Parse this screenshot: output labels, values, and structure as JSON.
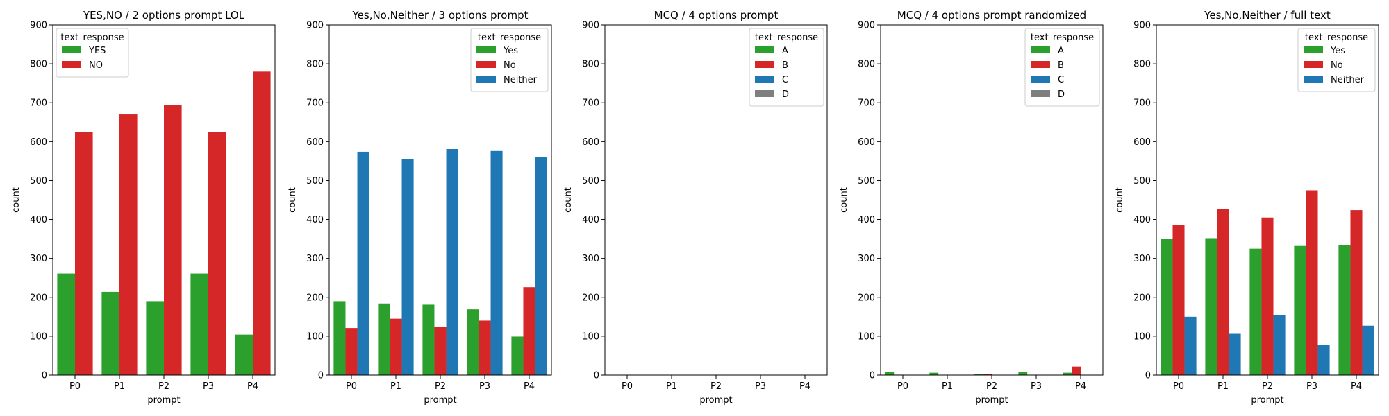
{
  "colors": {
    "green": "#2ca02c",
    "red": "#d62728",
    "blue": "#1f77b4",
    "gray": "#7f7f7f"
  },
  "chart_data": [
    {
      "type": "bar",
      "title": "YES,NO / 2 options prompt LOL",
      "xlabel": "prompt",
      "ylabel": "count",
      "ylim": [
        0,
        900
      ],
      "yticks": [
        0,
        100,
        200,
        300,
        400,
        500,
        600,
        700,
        800,
        900
      ],
      "categories": [
        "P0",
        "P1",
        "P2",
        "P3",
        "P4"
      ],
      "legend": {
        "title": "text_response",
        "placement": "top-left"
      },
      "series": [
        {
          "name": "YES",
          "color": "#2ca02c",
          "values": [
            261,
            214,
            190,
            261,
            104
          ]
        },
        {
          "name": "NO",
          "color": "#d62728",
          "values": [
            625,
            670,
            695,
            625,
            780
          ]
        }
      ]
    },
    {
      "type": "bar",
      "title": "Yes,No,Neither / 3 options prompt",
      "xlabel": "prompt",
      "ylabel": "count",
      "ylim": [
        0,
        900
      ],
      "yticks": [
        0,
        100,
        200,
        300,
        400,
        500,
        600,
        700,
        800,
        900
      ],
      "categories": [
        "P0",
        "P1",
        "P2",
        "P3",
        "P4"
      ],
      "legend": {
        "title": "text_response",
        "placement": "top-right"
      },
      "series": [
        {
          "name": "Yes",
          "color": "#2ca02c",
          "values": [
            190,
            184,
            181,
            169,
            99
          ]
        },
        {
          "name": "No",
          "color": "#d62728",
          "values": [
            121,
            145,
            124,
            140,
            226
          ]
        },
        {
          "name": "Neither",
          "color": "#1f77b4",
          "values": [
            574,
            556,
            581,
            576,
            561
          ]
        }
      ]
    },
    {
      "type": "bar",
      "title": "MCQ / 4 options prompt",
      "xlabel": "prompt",
      "ylabel": "count",
      "ylim": [
        0,
        900
      ],
      "yticks": [
        0,
        100,
        200,
        300,
        400,
        500,
        600,
        700,
        800,
        900
      ],
      "categories": [
        "P0",
        "P1",
        "P2",
        "P3",
        "P4"
      ],
      "legend": {
        "title": "text_response",
        "placement": "top-right"
      },
      "series": [
        {
          "name": "A",
          "color": "#2ca02c",
          "values": [
            0,
            0,
            0,
            0,
            0
          ]
        },
        {
          "name": "B",
          "color": "#d62728",
          "values": [
            0,
            0,
            0,
            0,
            0
          ]
        },
        {
          "name": "C",
          "color": "#1f77b4",
          "values": [
            0,
            0,
            0,
            0,
            0
          ]
        },
        {
          "name": "D",
          "color": "#7f7f7f",
          "values": [
            0,
            0,
            0,
            0,
            0
          ]
        }
      ]
    },
    {
      "type": "bar",
      "title": "MCQ / 4 options prompt randomized",
      "xlabel": "prompt",
      "ylabel": "count",
      "ylim": [
        0,
        900
      ],
      "yticks": [
        0,
        100,
        200,
        300,
        400,
        500,
        600,
        700,
        800,
        900
      ],
      "categories": [
        "P0",
        "P1",
        "P2",
        "P3",
        "P4"
      ],
      "legend": {
        "title": "text_response",
        "placement": "top-right"
      },
      "series": [
        {
          "name": "A",
          "color": "#2ca02c",
          "values": [
            8,
            6,
            2,
            8,
            6
          ]
        },
        {
          "name": "B",
          "color": "#d62728",
          "values": [
            1,
            0,
            3,
            0,
            22
          ]
        },
        {
          "name": "C",
          "color": "#1f77b4",
          "values": [
            0,
            0,
            0,
            0,
            0
          ]
        },
        {
          "name": "D",
          "color": "#7f7f7f",
          "values": [
            0,
            0,
            0,
            0,
            0
          ]
        }
      ]
    },
    {
      "type": "bar",
      "title": "Yes,No,Neither / full text",
      "xlabel": "prompt",
      "ylabel": "count",
      "ylim": [
        0,
        900
      ],
      "yticks": [
        0,
        100,
        200,
        300,
        400,
        500,
        600,
        700,
        800,
        900
      ],
      "categories": [
        "P0",
        "P1",
        "P2",
        "P3",
        "P4"
      ],
      "legend": {
        "title": "text_response",
        "placement": "top-right"
      },
      "series": [
        {
          "name": "Yes",
          "color": "#2ca02c",
          "values": [
            350,
            352,
            325,
            332,
            334
          ]
        },
        {
          "name": "No",
          "color": "#d62728",
          "values": [
            385,
            427,
            405,
            475,
            424
          ]
        },
        {
          "name": "Neither",
          "color": "#1f77b4",
          "values": [
            150,
            106,
            154,
            77,
            127
          ]
        }
      ]
    }
  ]
}
